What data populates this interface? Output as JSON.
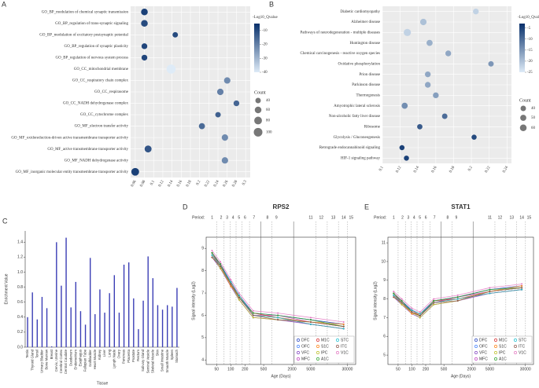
{
  "chart_data": [
    {
      "type": "dot",
      "panel": "A",
      "categories": [
        "GO_BP_modulation of chemical synaptic transmission",
        "GO_BP_regulation of trans-synaptic signaling",
        "GO_BP_modulation of excitatory postsynaptic potential",
        "GO_BP_regulation of synaptic plasticity",
        "GO_BP_regulation of nervous system process",
        "GO_CC_mitochondrial membrane",
        "GO_CC_respiratory chain complex",
        "GO_CC_respirasome",
        "GO_CC_NADH dehydrogenase complex",
        "GO_CC_cytochrome complex",
        "GO_MF_electron transfer activity",
        "GO_MF_oxidoreduction-driven active transmembrane transporter activity",
        "GO_MF_active transmembrane transporter activity",
        "GO_MF_NADH dehydrogenase activity",
        "GO_MF_inorganic molecular entity transmembrane transporter activity"
      ],
      "values": [
        0.08,
        0.08,
        0.147,
        0.08,
        0.08,
        0.138,
        0.26,
        0.245,
        0.28,
        0.24,
        0.205,
        0.255,
        0.088,
        0.255,
        0.06
      ],
      "color_values": [
        -8,
        -10,
        -10,
        -9,
        -9,
        -40,
        -22,
        -20,
        -15,
        -14,
        -16,
        -22,
        -12,
        -22,
        -8
      ],
      "sizes": [
        60,
        60,
        40,
        45,
        45,
        110,
        55,
        55,
        45,
        40,
        50,
        55,
        65,
        55,
        80
      ],
      "xlim": [
        0.05,
        0.31
      ],
      "xticks": [
        0.06,
        0.08,
        0.1,
        0.12,
        0.14,
        0.16,
        0.18,
        0.2,
        0.22,
        0.24,
        0.26,
        0.28,
        0.3
      ],
      "colorbar": {
        "title": "-Log10_Qvalue",
        "lim": [
          -40,
          -5
        ],
        "ticks": [
          -10,
          -20,
          -30,
          -40
        ],
        "colors": [
          "#deebf7",
          "#08306b"
        ]
      },
      "size_legend": {
        "title": "Count",
        "ticks": [
          40,
          60,
          80,
          100
        ]
      }
    },
    {
      "type": "dot",
      "panel": "B",
      "categories": [
        "Diabetic cardiomyopathy",
        "Alzheimer disease",
        "Pathways of neurodegeneration - multiple diseases",
        "Huntington disease",
        "Chemical carcinogenesis - reactive oxygen species",
        "Oxidative phosphorylation",
        "Prion disease",
        "Parkinson disease",
        "Thermogenesis",
        "Amyotrophic lateral sclerosis",
        "Non-alcoholic fatty liver disease",
        "Ribosome",
        "Glycolysis / Gluconeogenesis",
        "Retrograde endocannabinoid signaling",
        "HIF-1 signaling pathway"
      ],
      "values": [
        0.205,
        0.146,
        0.128,
        0.153,
        0.174,
        0.222,
        0.151,
        0.151,
        0.16,
        0.125,
        0.17,
        0.142,
        0.203,
        0.122,
        0.127
      ],
      "color_values": [
        -22,
        -20,
        -22,
        -18,
        -17,
        -15,
        -17,
        -17,
        -16,
        -14,
        -10,
        -8,
        -6,
        -5,
        -5
      ],
      "sizes": [
        45,
        55,
        70,
        50,
        45,
        40,
        45,
        45,
        45,
        50,
        40,
        38,
        35,
        35,
        35
      ],
      "xlim": [
        0.1,
        0.245
      ],
      "xticks": [
        0.1,
        0.12,
        0.14,
        0.16,
        0.18,
        0.2,
        0.22,
        0.24
      ],
      "colorbar": {
        "title": "-Log10_Qvalue",
        "lim": [
          -25,
          -3
        ],
        "ticks": [
          -5,
          -10,
          -15,
          -20,
          -25
        ],
        "colors": [
          "#deebf7",
          "#08306b"
        ]
      },
      "size_legend": {
        "title": "Count",
        "ticks": [
          40,
          50,
          60
        ]
      }
    },
    {
      "type": "lollipop",
      "panel": "C",
      "color": "#3a3db5",
      "categories": [
        "Testis",
        "Thyroid Gland",
        "Tonsil",
        "Urinary Bladder",
        "Bone Marrow",
        "Breast",
        "Cervix, Uterine",
        "Cerebral Cortex",
        "Central Caudate",
        "Duodenum",
        "Endometrium",
        "Esophagus",
        "Fallopian Tube",
        "Gallbladder",
        "Heart Muscle",
        "Kidney",
        "Liver",
        "Lung",
        "Lymph Node",
        "Ovary",
        "Pancreas",
        "Placenta",
        "Prostate",
        "Rectum",
        "Salivary Gland",
        "Seminal Vesicle",
        "Skeletal Muscle",
        "Skin",
        "Small Intestine",
        "Smooth Muscle",
        "Spleen",
        "Stomach"
      ],
      "values": [
        0.4,
        0.73,
        0.37,
        0.67,
        0.52,
        0.01,
        1.4,
        0.82,
        1.46,
        0.53,
        0.87,
        0.48,
        0.3,
        1.19,
        0.44,
        0.77,
        0.46,
        0.72,
        0.96,
        0.46,
        1.1,
        1.13,
        0.65,
        0.24,
        0.62,
        1.21,
        0.92,
        0.56,
        0.5,
        0.56,
        0.54,
        0.79
      ],
      "ylim": [
        0,
        1.55
      ],
      "yticks": [
        {
          "value": 0,
          "label": "0.0"
        },
        0.2,
        0.4,
        0.6,
        0.8,
        {
          "value": 1,
          "label": "1.0"
        },
        1.2,
        1.4
      ],
      "ylabel": "Enrichment Value",
      "xlabel": "Tissue"
    },
    {
      "type": "line",
      "panel": "D",
      "title": "RPS2",
      "period_label": "Period:",
      "periods": [
        1,
        2,
        3,
        4,
        5,
        6,
        7,
        8,
        9,
        11,
        12,
        13,
        14,
        15
      ],
      "x": [
        40,
        60,
        100,
        150,
        300,
        1000,
        5000,
        25000
      ],
      "xlim": [
        30,
        45000
      ],
      "xlog": true,
      "xticks": [
        50,
        100,
        200,
        500,
        2000,
        5000,
        30000
      ],
      "ylim": [
        3.8,
        9.5
      ],
      "yticks": [
        4,
        5,
        6,
        7,
        8,
        9
      ],
      "ylabel": "Signal intensity (Log2)",
      "xlabel": "Age (Days)",
      "series": [
        {
          "name": "DFC",
          "color": "#1f3fbf",
          "values": [
            8.8,
            8.3,
            7.5,
            6.9,
            6.1,
            6.0,
            5.8,
            5.6
          ]
        },
        {
          "name": "OFC",
          "color": "#3f7fff",
          "values": [
            8.7,
            8.2,
            7.4,
            6.8,
            6.0,
            5.9,
            5.7,
            5.5
          ]
        },
        {
          "name": "VFC",
          "color": "#7f3fbf",
          "values": [
            8.6,
            8.1,
            7.3,
            6.7,
            5.9,
            5.8,
            5.6,
            5.4
          ]
        },
        {
          "name": "MFC",
          "color": "#bf3fbf",
          "values": [
            8.7,
            8.3,
            7.4,
            6.8,
            6.0,
            6.0,
            5.7,
            5.5
          ]
        },
        {
          "name": "M1C",
          "color": "#d62728",
          "values": [
            8.8,
            8.2,
            7.5,
            6.8,
            6.1,
            5.9,
            5.6,
            5.4
          ]
        },
        {
          "name": "S1C",
          "color": "#ff7f0e",
          "values": [
            8.6,
            8.2,
            7.3,
            6.9,
            6.0,
            5.9,
            5.7,
            5.6
          ]
        },
        {
          "name": "IPC",
          "color": "#bcbd22",
          "values": [
            8.7,
            8.1,
            7.4,
            6.7,
            5.9,
            5.8,
            5.7,
            5.5
          ]
        },
        {
          "name": "A1C",
          "color": "#2ca02c",
          "values": [
            8.8,
            8.3,
            7.4,
            6.8,
            6.1,
            6.0,
            5.8,
            5.5
          ]
        },
        {
          "name": "STC",
          "color": "#17becf",
          "values": [
            8.7,
            8.2,
            7.5,
            6.9,
            6.0,
            5.9,
            5.6,
            5.4
          ]
        },
        {
          "name": "ITC",
          "color": "#8c564b",
          "values": [
            8.6,
            8.2,
            7.4,
            6.8,
            6.0,
            5.8,
            5.7,
            5.5
          ]
        },
        {
          "name": "V1C",
          "color": "#e377c2",
          "values": [
            8.9,
            8.4,
            7.6,
            7.0,
            6.2,
            6.1,
            5.9,
            5.7
          ]
        }
      ]
    },
    {
      "type": "line",
      "panel": "E",
      "title": "STAT1",
      "period_label": "Period:",
      "periods": [
        1,
        2,
        3,
        4,
        5,
        6,
        7,
        8,
        9,
        11,
        12,
        13,
        14,
        15
      ],
      "x": [
        40,
        60,
        100,
        150,
        300,
        1000,
        5000,
        25000
      ],
      "xlim": [
        30,
        45000
      ],
      "xlog": true,
      "xticks": [
        50,
        100,
        200,
        500,
        2000,
        5000,
        30000
      ],
      "ylim": [
        4.5,
        11.3
      ],
      "yticks": [
        5,
        6,
        7,
        8,
        9,
        10,
        11
      ],
      "ylabel": "Signal intensity (Log2)",
      "xlabel": "Age (Days)",
      "series": [
        {
          "name": "DFC",
          "color": "#1f3fbf",
          "values": [
            8.3,
            7.9,
            7.4,
            7.2,
            7.9,
            8.1,
            8.5,
            8.7
          ]
        },
        {
          "name": "OFC",
          "color": "#3f7fff",
          "values": [
            8.2,
            7.8,
            7.3,
            7.1,
            7.8,
            8.0,
            8.4,
            8.6
          ]
        },
        {
          "name": "VFC",
          "color": "#7f3fbf",
          "values": [
            8.1,
            7.7,
            7.2,
            7.0,
            7.7,
            7.9,
            8.3,
            8.5
          ]
        },
        {
          "name": "MFC",
          "color": "#bf3fbf",
          "values": [
            8.2,
            7.9,
            7.3,
            7.1,
            7.8,
            8.1,
            8.4,
            8.6
          ]
        },
        {
          "name": "M1C",
          "color": "#d62728",
          "values": [
            8.3,
            7.8,
            7.4,
            7.1,
            7.9,
            8.0,
            8.3,
            8.5
          ]
        },
        {
          "name": "S1C",
          "color": "#ff7f0e",
          "values": [
            8.1,
            7.8,
            7.2,
            7.2,
            7.8,
            8.0,
            8.4,
            8.7
          ]
        },
        {
          "name": "IPC",
          "color": "#bcbd22",
          "values": [
            8.2,
            7.7,
            7.3,
            7.0,
            7.7,
            7.9,
            8.4,
            8.6
          ]
        },
        {
          "name": "A1C",
          "color": "#2ca02c",
          "values": [
            8.3,
            7.9,
            7.3,
            7.1,
            7.9,
            8.1,
            8.5,
            8.6
          ]
        },
        {
          "name": "STC",
          "color": "#17becf",
          "values": [
            8.2,
            7.8,
            7.4,
            7.2,
            7.8,
            8.0,
            8.3,
            8.5
          ]
        },
        {
          "name": "ITC",
          "color": "#8c564b",
          "values": [
            8.1,
            7.8,
            7.3,
            7.1,
            7.8,
            7.9,
            8.4,
            8.6
          ]
        },
        {
          "name": "V1C",
          "color": "#e377c2",
          "values": [
            8.4,
            8.0,
            7.5,
            7.3,
            8.0,
            8.2,
            8.6,
            8.8
          ]
        }
      ]
    }
  ]
}
